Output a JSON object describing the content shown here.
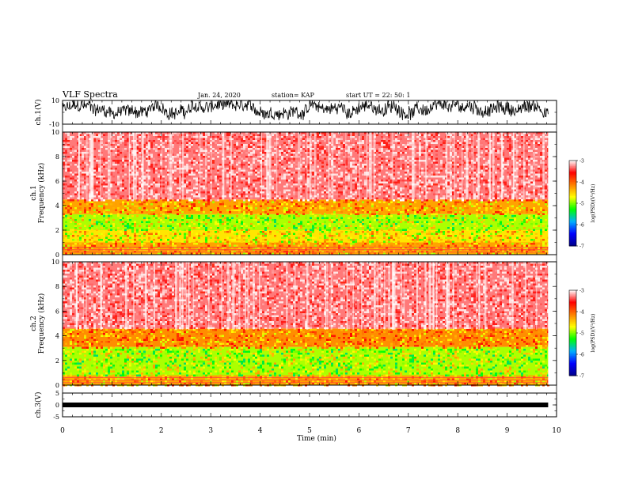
{
  "header": {
    "title": "VLF Spectra",
    "date": "Jan. 24, 2020",
    "station": "station= KAP",
    "start": "start  UT =   22: 50: 1"
  },
  "chart_data": [
    {
      "type": "line",
      "panel": "ch1-waveform",
      "ylabel": "ch.1(V)",
      "ylim": [
        -10,
        10
      ],
      "y_ticks": [
        "10",
        "-10"
      ],
      "x_range_min": [
        0,
        10
      ],
      "data_extent_min": 9.83,
      "description": "noisy waveform oscillating roughly between -7 and +10 V"
    },
    {
      "type": "heatmap",
      "panel": "ch1-spectrogram",
      "ylabel": "ch.1 Frequency (kHz)",
      "ylim": [
        0,
        10
      ],
      "y_ticks": [
        "0",
        "2",
        "4",
        "6",
        "8",
        "10"
      ],
      "colorbar": {
        "label": "log(PSD)(V²/Hz)",
        "range": [
          -7,
          -3
        ],
        "ticks": [
          "-3",
          "-4",
          "-5",
          "-6",
          "-7"
        ]
      },
      "band_levels": [
        {
          "from_khz": 0,
          "to_khz": 1,
          "log_psd": -4.3
        },
        {
          "from_khz": 1,
          "to_khz": 2,
          "log_psd": -4.6
        },
        {
          "from_khz": 2,
          "to_khz": 3.3,
          "log_psd": -4.9
        },
        {
          "from_khz": 3.3,
          "to_khz": 4.5,
          "log_psd": -4.3
        },
        {
          "from_khz": 4.5,
          "to_khz": 10,
          "log_psd": -3.3
        }
      ]
    },
    {
      "type": "heatmap",
      "panel": "ch2-spectrogram",
      "ylabel": "ch.2 Frequency (kHz)",
      "ylim": [
        0,
        10
      ],
      "y_ticks": [
        "0",
        "2",
        "4",
        "6",
        "8",
        "10"
      ],
      "colorbar": {
        "label": "log(PSD)(V²/Hz)",
        "range": [
          -7,
          -3
        ],
        "ticks": [
          "-3",
          "-4",
          "-5",
          "-6",
          "-7"
        ]
      },
      "band_levels": [
        {
          "from_khz": 0,
          "to_khz": 0.8,
          "log_psd": -4.3
        },
        {
          "from_khz": 0.8,
          "to_khz": 3.1,
          "log_psd": -4.9
        },
        {
          "from_khz": 3.1,
          "to_khz": 4.6,
          "log_psd": -4.2
        },
        {
          "from_khz": 4.6,
          "to_khz": 10,
          "log_psd": -3.3
        }
      ]
    },
    {
      "type": "line",
      "panel": "ch3-signal",
      "ylabel": "ch.3(V)",
      "ylim": [
        -5,
        5
      ],
      "y_ticks": [
        "5",
        "0",
        "-5"
      ],
      "level_v": 0,
      "data_extent_min": 9.83
    }
  ],
  "x_axis": {
    "label": "Time  (min)",
    "range": [
      0,
      10
    ],
    "ticks": [
      "0",
      "1",
      "2",
      "3",
      "4",
      "5",
      "6",
      "7",
      "8",
      "9",
      "10"
    ]
  },
  "colors": {
    "waveform": "#000000",
    "ch3": "#000000",
    "colormap": [
      "#00008b",
      "#0000ff",
      "#00b0ff",
      "#00ff00",
      "#ffff00",
      "#ff8000",
      "#ff0000",
      "#ffffff"
    ]
  }
}
